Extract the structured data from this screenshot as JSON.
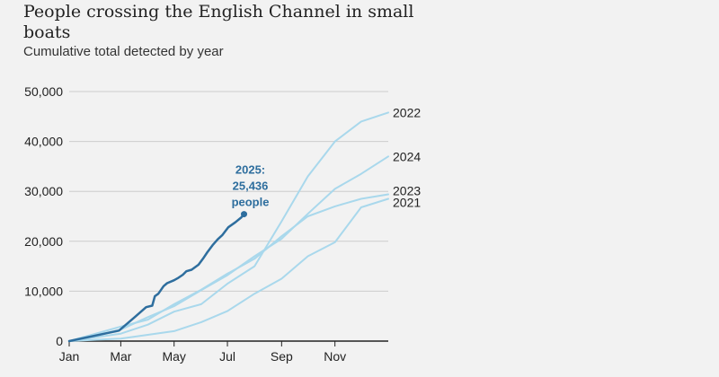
{
  "header": {
    "title": "People crossing the English Channel in small boats",
    "subtitle": "Cumulative total detected by year"
  },
  "colors": {
    "background": "#f2f2f2",
    "past_years": "#a9d8ec",
    "current_year": "#2e6e9e",
    "annotation": "#2e6e9e",
    "grid": "#cccccc",
    "axis": "#222222"
  },
  "chart_data": {
    "type": "line",
    "title": "People crossing the English Channel in small boats",
    "subtitle": "Cumulative total detected by year",
    "xlabel": "",
    "ylabel": "",
    "x_unit": "day of year",
    "xlim": [
      0,
      365
    ],
    "ylim": [
      0,
      50000
    ],
    "grid": "horizontal",
    "x_ticks": [
      {
        "label": "Jan",
        "value": 0
      },
      {
        "label": "Mar",
        "value": 59
      },
      {
        "label": "May",
        "value": 120
      },
      {
        "label": "Jul",
        "value": 181
      },
      {
        "label": "Sep",
        "value": 243
      },
      {
        "label": "Nov",
        "value": 304
      }
    ],
    "y_ticks": [
      {
        "label": "0",
        "value": 0
      },
      {
        "label": "10,000",
        "value": 10000
      },
      {
        "label": "20,000",
        "value": 20000
      },
      {
        "label": "30,000",
        "value": 30000
      },
      {
        "label": "40,000",
        "value": 40000
      },
      {
        "label": "50,000",
        "value": 50000
      }
    ],
    "series": [
      {
        "name": "2021",
        "style": "past",
        "points": [
          [
            0,
            0
          ],
          [
            59,
            500
          ],
          [
            120,
            2000
          ],
          [
            151,
            3800
          ],
          [
            181,
            6000
          ],
          [
            212,
            9500
          ],
          [
            243,
            12500
          ],
          [
            273,
            17000
          ],
          [
            304,
            19800
          ],
          [
            334,
            26800
          ],
          [
            365,
            28500
          ]
        ]
      },
      {
        "name": "2022",
        "style": "past",
        "points": [
          [
            0,
            0
          ],
          [
            59,
            1500
          ],
          [
            90,
            3300
          ],
          [
            120,
            5900
          ],
          [
            151,
            7400
          ],
          [
            181,
            11500
          ],
          [
            212,
            15000
          ],
          [
            243,
            24000
          ],
          [
            273,
            33000
          ],
          [
            304,
            40000
          ],
          [
            334,
            44000
          ],
          [
            365,
            45800
          ]
        ]
      },
      {
        "name": "2023",
        "style": "past",
        "points": [
          [
            0,
            0
          ],
          [
            59,
            2900
          ],
          [
            90,
            4300
          ],
          [
            120,
            7400
          ],
          [
            151,
            10300
          ],
          [
            181,
            13500
          ],
          [
            212,
            16500
          ],
          [
            243,
            21000
          ],
          [
            273,
            25000
          ],
          [
            304,
            27000
          ],
          [
            334,
            28500
          ],
          [
            365,
            29400
          ]
        ]
      },
      {
        "name": "2024",
        "style": "past",
        "points": [
          [
            0,
            0
          ],
          [
            59,
            2300
          ],
          [
            90,
            4800
          ],
          [
            120,
            7000
          ],
          [
            151,
            10200
          ],
          [
            181,
            13200
          ],
          [
            212,
            17000
          ],
          [
            243,
            20500
          ],
          [
            273,
            25500
          ],
          [
            304,
            30500
          ],
          [
            334,
            33500
          ],
          [
            365,
            37000
          ]
        ]
      },
      {
        "name": "2025",
        "style": "current",
        "points": [
          [
            0,
            0
          ],
          [
            57,
            2100
          ],
          [
            75,
            4800
          ],
          [
            88,
            6800
          ],
          [
            95,
            7100
          ],
          [
            98,
            9000
          ],
          [
            102,
            9500
          ],
          [
            108,
            11000
          ],
          [
            112,
            11600
          ],
          [
            120,
            12200
          ],
          [
            125,
            12700
          ],
          [
            130,
            13300
          ],
          [
            134,
            14000
          ],
          [
            140,
            14300
          ],
          [
            148,
            15300
          ],
          [
            153,
            16500
          ],
          [
            158,
            17800
          ],
          [
            164,
            19200
          ],
          [
            170,
            20400
          ],
          [
            175,
            21200
          ],
          [
            182,
            22800
          ],
          [
            190,
            23800
          ],
          [
            197,
            24800
          ],
          [
            200,
            25436
          ]
        ]
      }
    ],
    "annotations": [
      {
        "text": [
          "2025:",
          "25,436",
          "people"
        ],
        "series": "2025"
      }
    ]
  }
}
